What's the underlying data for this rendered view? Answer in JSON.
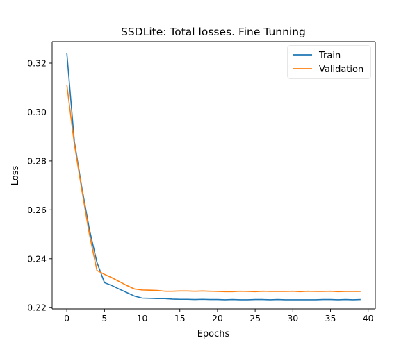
{
  "chart_data": {
    "type": "line",
    "title": "SSDLite: Total losses. Fine Tunning",
    "xlabel": "Epochs",
    "ylabel": "Loss",
    "xlim": [
      -1.95,
      40.95
    ],
    "ylim": [
      0.2195,
      0.3288
    ],
    "xticks": [
      0,
      5,
      10,
      15,
      20,
      25,
      30,
      35,
      40
    ],
    "yticks": [
      0.22,
      0.24,
      0.26,
      0.28,
      0.3,
      0.32
    ],
    "ytick_labels": [
      "0.22",
      "0.24",
      "0.26",
      "0.28",
      "0.30",
      "0.32"
    ],
    "grid": false,
    "legend_position": "top-right",
    "x": [
      0,
      1,
      2,
      3,
      4,
      5,
      6,
      7,
      8,
      9,
      10,
      11,
      12,
      13,
      14,
      15,
      16,
      17,
      18,
      19,
      20,
      21,
      22,
      23,
      24,
      25,
      26,
      27,
      28,
      29,
      30,
      31,
      32,
      33,
      34,
      35,
      36,
      37,
      38,
      39
    ],
    "series": [
      {
        "name": "Train",
        "color": "#1f77b4",
        "values": [
          0.3242,
          0.288,
          0.269,
          0.252,
          0.2385,
          0.2302,
          0.229,
          0.2275,
          0.2261,
          0.2247,
          0.2239,
          0.2238,
          0.2237,
          0.2237,
          0.2235,
          0.2234,
          0.2234,
          0.2233,
          0.2234,
          0.2233,
          0.2233,
          0.2232,
          0.2233,
          0.2232,
          0.2232,
          0.2233,
          0.2233,
          0.2232,
          0.2233,
          0.2232,
          0.2232,
          0.2232,
          0.2232,
          0.2232,
          0.2233,
          0.2233,
          0.2232,
          0.2233,
          0.2232,
          0.2233
        ]
      },
      {
        "name": "Validation",
        "color": "#ff7f0e",
        "values": [
          0.3112,
          0.287,
          0.268,
          0.25,
          0.2352,
          0.2336,
          0.2322,
          0.2306,
          0.229,
          0.2276,
          0.2272,
          0.2271,
          0.227,
          0.2267,
          0.2267,
          0.2268,
          0.2268,
          0.2267,
          0.2268,
          0.2267,
          0.2266,
          0.2265,
          0.2265,
          0.2267,
          0.2266,
          0.2265,
          0.2267,
          0.2266,
          0.2266,
          0.2266,
          0.2267,
          0.2265,
          0.2267,
          0.2266,
          0.2266,
          0.2267,
          0.2265,
          0.2266,
          0.2266,
          0.2266
        ]
      }
    ]
  }
}
